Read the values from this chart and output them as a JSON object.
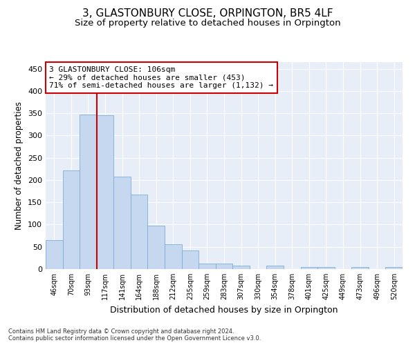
{
  "title": "3, GLASTONBURY CLOSE, ORPINGTON, BR5 4LF",
  "subtitle": "Size of property relative to detached houses in Orpington",
  "xlabel": "Distribution of detached houses by size in Orpington",
  "ylabel": "Number of detached properties",
  "categories": [
    "46sqm",
    "70sqm",
    "93sqm",
    "117sqm",
    "141sqm",
    "164sqm",
    "188sqm",
    "212sqm",
    "235sqm",
    "259sqm",
    "283sqm",
    "307sqm",
    "330sqm",
    "354sqm",
    "378sqm",
    "401sqm",
    "425sqm",
    "449sqm",
    "473sqm",
    "496sqm",
    "520sqm"
  ],
  "bar_heights": [
    65,
    222,
    347,
    346,
    208,
    167,
    97,
    56,
    42,
    13,
    12,
    7,
    0,
    7,
    0,
    5,
    4,
    0,
    5,
    0,
    4
  ],
  "bar_color": "#c5d8f0",
  "bar_edge_color": "#7aaed4",
  "vline_x": 2.5,
  "vline_color": "#cc0000",
  "annotation_text": "3 GLASTONBURY CLOSE: 106sqm\n← 29% of detached houses are smaller (453)\n71% of semi-detached houses are larger (1,132) →",
  "annotation_box_color": "#ffffff",
  "annotation_border_color": "#cc0000",
  "ylim": [
    0,
    465
  ],
  "yticks": [
    0,
    50,
    100,
    150,
    200,
    250,
    300,
    350,
    400,
    450
  ],
  "background_color": "#e8eef8",
  "footer_line1": "Contains HM Land Registry data © Crown copyright and database right 2024.",
  "footer_line2": "Contains public sector information licensed under the Open Government Licence v3.0.",
  "title_fontsize": 11,
  "subtitle_fontsize": 9.5,
  "xlabel_fontsize": 9,
  "ylabel_fontsize": 8.5,
  "annotation_fontsize": 8
}
